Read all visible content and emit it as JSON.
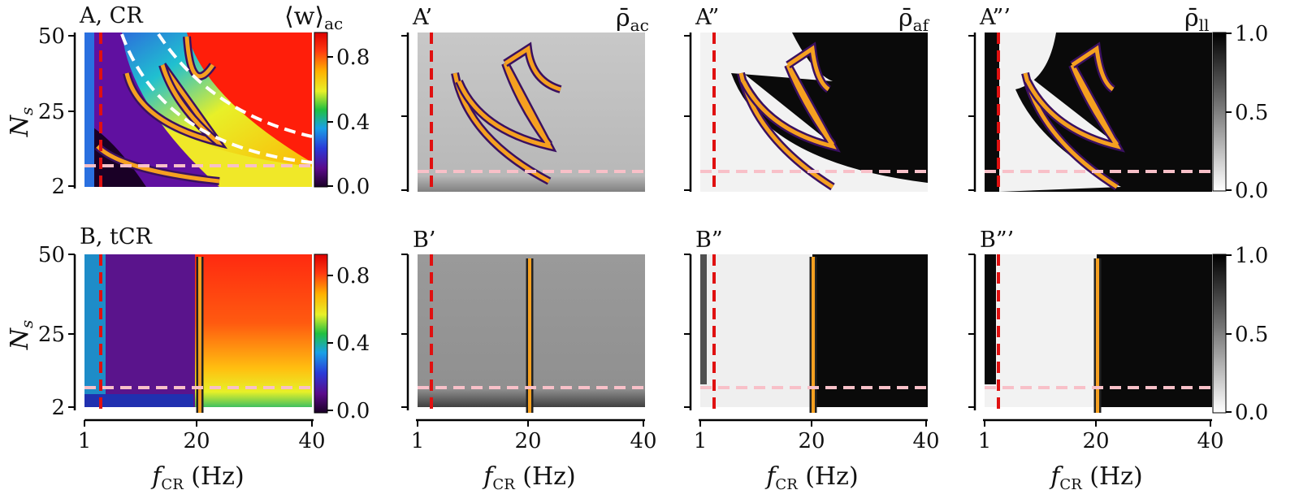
{
  "chart_data": [
    {
      "panel": "A, CR",
      "type": "heatmap",
      "colormap": "jet",
      "xlim": [
        1,
        40
      ],
      "ylim": [
        2,
        50
      ],
      "x_ticks": [
        "1",
        "20",
        "40"
      ],
      "y_ticks": [
        "2",
        "25",
        "50"
      ],
      "xlabel": "",
      "ylabel": "N_s",
      "colorbar_label": "⟨w⟩ac",
      "colorbar_ticks": [
        "0.0",
        "0.4",
        "0.8"
      ],
      "colorbar_range": [
        0.0,
        0.9
      ],
      "red_dashed_x": 2.5,
      "pink_dashed_y": 7,
      "white_dashed_curves": true
    },
    {
      "panel": "A’",
      "type": "heatmap",
      "colormap": "gray",
      "xlim": [
        1,
        40
      ],
      "ylim": [
        2,
        50
      ],
      "colorbar_label": "ρ̄ac",
      "red_dashed_x": 2.5,
      "pink_dashed_y": 7
    },
    {
      "panel": "A”",
      "type": "heatmap",
      "colormap": "gray",
      "xlim": [
        1,
        40
      ],
      "ylim": [
        2,
        50
      ],
      "colorbar_label": "ρ̄af",
      "red_dashed_x": 2.5,
      "pink_dashed_y": 7
    },
    {
      "panel": "A”’",
      "type": "heatmap",
      "colormap": "gray",
      "xlim": [
        1,
        40
      ],
      "ylim": [
        2,
        50
      ],
      "colorbar_label": "ρ̄ll",
      "colorbar_ticks": [
        "0.0",
        "0.5",
        "1.0"
      ],
      "colorbar_range": [
        0.0,
        1.0
      ],
      "red_dashed_x": 2.5,
      "pink_dashed_y": 7
    },
    {
      "panel": "B, tCR",
      "type": "heatmap",
      "colormap": "jet",
      "xlim": [
        1,
        40
      ],
      "ylim": [
        2,
        50
      ],
      "x_ticks": [
        "1",
        "20",
        "40"
      ],
      "y_ticks": [
        "2",
        "25",
        "50"
      ],
      "xlabel": "f_CR (Hz)",
      "ylabel": "N_s",
      "colorbar_ticks": [
        "0.0",
        "0.4",
        "0.8"
      ],
      "colorbar_range": [
        0.0,
        0.9
      ],
      "transition_line_x": 20.5,
      "red_dashed_x": 2.5,
      "pink_dashed_y": 7
    },
    {
      "panel": "B’",
      "type": "heatmap",
      "colormap": "gray",
      "xlim": [
        1,
        40
      ],
      "ylim": [
        2,
        50
      ],
      "xlabel": "f_CR (Hz)",
      "transition_line_x": 20.5
    },
    {
      "panel": "B”",
      "type": "heatmap",
      "colormap": "gray",
      "xlim": [
        1,
        40
      ],
      "ylim": [
        2,
        50
      ],
      "xlabel": "f_CR (Hz)",
      "transition_line_x": 20.5
    },
    {
      "panel": "B”’",
      "type": "heatmap",
      "colormap": "gray",
      "xlim": [
        1,
        40
      ],
      "ylim": [
        2,
        50
      ],
      "xlabel": "f_CR (Hz)",
      "colorbar_ticks": [
        "0.0",
        "0.5",
        "1.0"
      ],
      "colorbar_range": [
        0.0,
        1.0
      ],
      "transition_line_x": 20.5
    }
  ],
  "labels": {
    "panel_a": "A, CR",
    "panel_a1": "A’",
    "panel_a2": "A”",
    "panel_a3": "A”’",
    "panel_b": "B, tCR",
    "panel_b1": "B’",
    "panel_b2": "B”",
    "panel_b3": "B”’",
    "cbar_w": "⟨w⟩",
    "cbar_w_sub": "ac",
    "cbar_rho_ac": "ρ̄",
    "cbar_rho_ac_sub": "ac",
    "cbar_rho_af": "ρ̄",
    "cbar_rho_af_sub": "af",
    "cbar_rho_ll": "ρ̄",
    "cbar_rho_ll_sub": "ll",
    "x_label_main": "f",
    "x_label_sub": "CR",
    "x_label_unit": " (Hz)",
    "y_label_main": "N",
    "y_label_sub": "s",
    "x_tick_1": "1",
    "x_tick_20": "20",
    "x_tick_40": "40",
    "y_tick_2": "2",
    "y_tick_25": "25",
    "y_tick_50": "50",
    "cb_jet_00": "0.0",
    "cb_jet_04": "0.4",
    "cb_jet_08": "0.8",
    "cb_gray_00": "0.0",
    "cb_gray_05": "0.5",
    "cb_gray_10": "1.0"
  }
}
